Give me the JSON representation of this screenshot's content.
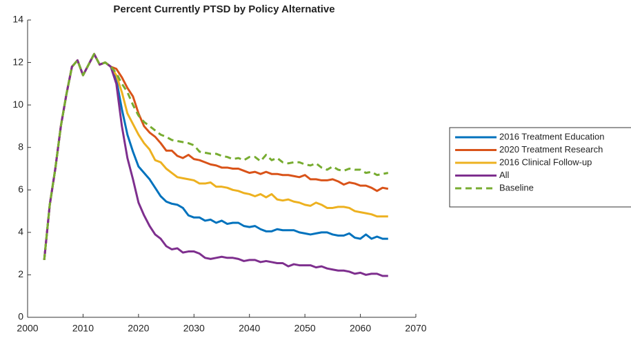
{
  "chart_data": {
    "type": "line",
    "title": "Percent Currently PTSD by Policy Alternative",
    "x": [
      2003,
      2004,
      2005,
      2006,
      2007,
      2008,
      2009,
      2010,
      2011,
      2012,
      2013,
      2014,
      2015,
      2016,
      2017,
      2018,
      2019,
      2020,
      2021,
      2022,
      2023,
      2024,
      2025,
      2026,
      2027,
      2028,
      2029,
      2030,
      2031,
      2032,
      2033,
      2034,
      2035,
      2036,
      2037,
      2038,
      2039,
      2040,
      2041,
      2042,
      2043,
      2044,
      2045,
      2046,
      2047,
      2048,
      2049,
      2050,
      2051,
      2052,
      2053,
      2054,
      2055,
      2056,
      2057,
      2058,
      2059,
      2060,
      2061,
      2062,
      2063,
      2064,
      2065
    ],
    "series": [
      {
        "name": "2016 Treatment Education",
        "color": "#0072bd",
        "dashed": false,
        "values": [
          2.7,
          5.3,
          7.0,
          9.0,
          10.5,
          11.8,
          12.1,
          11.4,
          11.9,
          12.4,
          11.9,
          12.0,
          11.8,
          11.2,
          9.8,
          8.6,
          7.8,
          7.1,
          6.8,
          6.5,
          6.1,
          5.7,
          5.45,
          5.35,
          5.3,
          5.15,
          4.8,
          4.7,
          4.7,
          4.55,
          4.6,
          4.45,
          4.55,
          4.4,
          4.45,
          4.45,
          4.3,
          4.25,
          4.3,
          4.15,
          4.05,
          4.05,
          4.15,
          4.1,
          4.1,
          4.1,
          4.0,
          3.95,
          3.9,
          3.95,
          4.0,
          4.0,
          3.9,
          3.85,
          3.85,
          3.95,
          3.75,
          3.7,
          3.9,
          3.7,
          3.8,
          3.7,
          3.7
        ]
      },
      {
        "name": "2020 Treatment Research",
        "color": "#d95319",
        "dashed": false,
        "values": [
          2.7,
          5.3,
          7.0,
          9.0,
          10.5,
          11.8,
          12.1,
          11.4,
          11.9,
          12.4,
          11.9,
          12.0,
          11.8,
          11.7,
          11.3,
          10.8,
          10.4,
          9.6,
          9.0,
          8.7,
          8.5,
          8.2,
          7.85,
          7.85,
          7.6,
          7.5,
          7.65,
          7.45,
          7.4,
          7.3,
          7.2,
          7.15,
          7.05,
          7.05,
          7.0,
          7.0,
          6.9,
          6.8,
          6.85,
          6.75,
          6.85,
          6.75,
          6.75,
          6.7,
          6.7,
          6.65,
          6.6,
          6.7,
          6.5,
          6.5,
          6.45,
          6.45,
          6.5,
          6.4,
          6.25,
          6.35,
          6.3,
          6.2,
          6.2,
          6.1,
          5.95,
          6.1,
          6.05
        ]
      },
      {
        "name": "2016 Clinical Follow-up",
        "color": "#edb120",
        "dashed": false,
        "values": [
          2.7,
          5.3,
          7.0,
          9.0,
          10.5,
          11.8,
          12.1,
          11.4,
          11.9,
          12.4,
          11.9,
          12.0,
          11.8,
          11.4,
          10.6,
          9.6,
          9.1,
          8.6,
          8.2,
          7.9,
          7.4,
          7.3,
          7.0,
          6.8,
          6.6,
          6.55,
          6.5,
          6.45,
          6.3,
          6.3,
          6.35,
          6.15,
          6.15,
          6.1,
          6.0,
          5.95,
          5.85,
          5.8,
          5.7,
          5.8,
          5.65,
          5.8,
          5.55,
          5.5,
          5.55,
          5.45,
          5.4,
          5.3,
          5.25,
          5.4,
          5.3,
          5.15,
          5.15,
          5.2,
          5.2,
          5.15,
          5.0,
          4.95,
          4.9,
          4.85,
          4.75,
          4.75,
          4.75
        ]
      },
      {
        "name": "All",
        "color": "#7e2f8e",
        "dashed": false,
        "values": [
          2.7,
          5.3,
          7.0,
          9.0,
          10.5,
          11.8,
          12.1,
          11.4,
          11.9,
          12.4,
          11.9,
          12.0,
          11.8,
          11.0,
          9.0,
          7.5,
          6.5,
          5.4,
          4.8,
          4.3,
          3.9,
          3.7,
          3.35,
          3.2,
          3.25,
          3.05,
          3.1,
          3.1,
          3.0,
          2.8,
          2.75,
          2.8,
          2.85,
          2.8,
          2.8,
          2.75,
          2.65,
          2.7,
          2.7,
          2.6,
          2.65,
          2.6,
          2.55,
          2.55,
          2.4,
          2.5,
          2.45,
          2.45,
          2.45,
          2.35,
          2.4,
          2.3,
          2.25,
          2.2,
          2.2,
          2.15,
          2.05,
          2.1,
          2.0,
          2.05,
          2.05,
          1.95,
          1.95
        ]
      },
      {
        "name": "Baseline",
        "color": "#77ac30",
        "dashed": true,
        "values": [
          2.7,
          5.3,
          7.0,
          9.0,
          10.5,
          11.8,
          12.1,
          11.4,
          11.9,
          12.4,
          11.9,
          12.0,
          11.8,
          11.5,
          11.0,
          10.6,
          10.0,
          9.5,
          9.2,
          9.0,
          8.8,
          8.6,
          8.5,
          8.35,
          8.3,
          8.25,
          8.2,
          8.1,
          7.8,
          7.75,
          7.7,
          7.7,
          7.6,
          7.55,
          7.45,
          7.5,
          7.4,
          7.55,
          7.55,
          7.35,
          7.65,
          7.4,
          7.5,
          7.3,
          7.25,
          7.3,
          7.3,
          7.2,
          7.15,
          7.25,
          7.05,
          6.95,
          7.1,
          6.95,
          6.9,
          7.0,
          6.95,
          6.95,
          6.8,
          6.85,
          6.7,
          6.75,
          6.8
        ]
      }
    ],
    "xlim": [
      2000,
      2070
    ],
    "xticks": [
      2000,
      2010,
      2020,
      2030,
      2040,
      2050,
      2060,
      2070
    ],
    "ylim": [
      0,
      14
    ],
    "yticks": [
      0,
      2,
      4,
      6,
      8,
      10,
      12,
      14
    ]
  }
}
